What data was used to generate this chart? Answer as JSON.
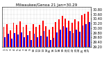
{
  "title": "Milwaukee/Genoa 21 Jan=30.29",
  "high_values": [
    30.05,
    30.18,
    29.92,
    30.22,
    30.15,
    30.28,
    30.05,
    30.15,
    29.88,
    30.18,
    30.05,
    30.15,
    30.32,
    30.08,
    29.95,
    30.05,
    30.25,
    30.38,
    30.52,
    30.42,
    30.32,
    30.22,
    30.38,
    30.28,
    30.55,
    30.62,
    30.7
  ],
  "low_values": [
    29.62,
    29.75,
    29.55,
    29.8,
    29.72,
    29.82,
    29.62,
    29.7,
    29.48,
    29.75,
    29.62,
    29.68,
    29.88,
    29.65,
    29.5,
    29.58,
    29.82,
    29.95,
    30.08,
    30.02,
    29.88,
    29.78,
    29.95,
    29.85,
    30.12,
    30.18,
    30.25
  ],
  "x_labels": [
    "1",
    "2",
    "3",
    "4",
    "5",
    "6",
    "7",
    "8",
    "9",
    "10",
    "11",
    "12",
    "13",
    "14",
    "15",
    "16",
    "17",
    "18",
    "19",
    "20",
    "21",
    "22",
    "23",
    "24",
    "25",
    "26",
    "27"
  ],
  "high_color": "#FF0000",
  "low_color": "#0000FF",
  "bg_color": "#FFFFFF",
  "ylim_min": 29.2,
  "ylim_max": 30.9,
  "ytick_values": [
    29.2,
    29.4,
    29.6,
    29.8,
    30.0,
    30.2,
    30.4,
    30.6,
    30.8
  ],
  "bar_width": 0.4,
  "title_fontsize": 4.0,
  "tick_fontsize": 3.5,
  "xlabel_fontsize": 3.2
}
